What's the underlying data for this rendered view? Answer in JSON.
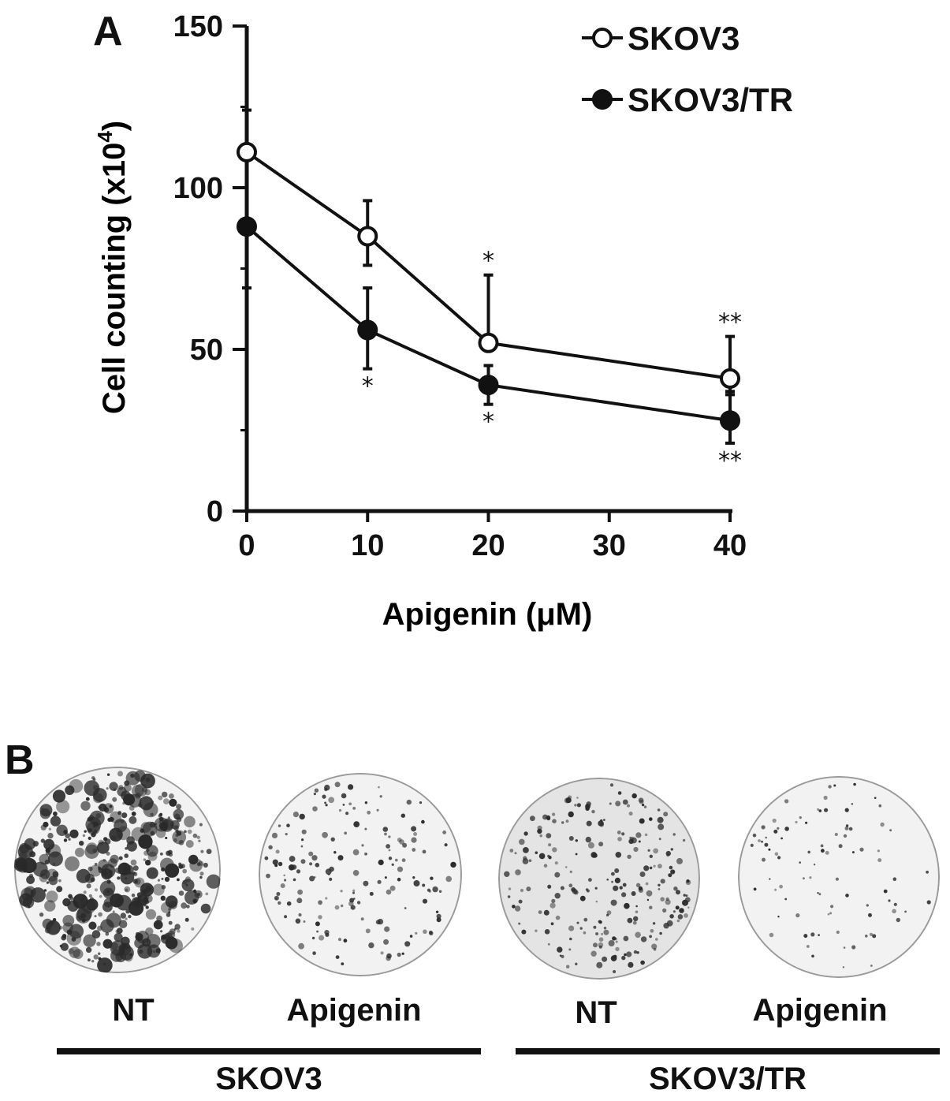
{
  "panels": {
    "a_letter": "A",
    "b_letter": "B"
  },
  "chart_data": {
    "type": "line",
    "xlabel": "Apigenin (μM)",
    "ylabel": "Cell counting (x10⁴)",
    "ylabel_base": "Cell counting (x10",
    "ylabel_sup": "4",
    "ylabel_close": ")",
    "x_ticks": [
      0,
      10,
      20,
      30,
      40
    ],
    "y_ticks": [
      0,
      50,
      100,
      150
    ],
    "xlim": [
      0,
      40
    ],
    "ylim": [
      0,
      150
    ],
    "grid": false,
    "legend_position": "top-right",
    "series": [
      {
        "name": "SKOV3",
        "marker": "open-circle",
        "x": [
          0,
          10,
          20,
          40
        ],
        "y": [
          111,
          85,
          52,
          41
        ],
        "err_up": [
          13,
          11,
          21,
          13
        ],
        "err_down": [
          0,
          9,
          0,
          5
        ],
        "annotations": [
          "",
          "",
          "*",
          "**"
        ],
        "annotation_side": "above"
      },
      {
        "name": "SKOV3/TR",
        "marker": "filled-circle",
        "x": [
          0,
          10,
          20,
          40
        ],
        "y": [
          88,
          56,
          39,
          28
        ],
        "err_up": [
          0,
          13,
          6,
          9
        ],
        "err_down": [
          19,
          12,
          6,
          7
        ],
        "annotations": [
          "",
          "*",
          "*",
          "**"
        ],
        "annotation_side": "below"
      }
    ]
  },
  "colony_assay": {
    "dishes": [
      {
        "label": "NT",
        "group": "SKOV3",
        "density": "high"
      },
      {
        "label": "Apigenin",
        "group": "SKOV3",
        "density": "medium"
      },
      {
        "label": "NT",
        "group": "SKOV3/TR",
        "density": "medium-high"
      },
      {
        "label": "Apigenin",
        "group": "SKOV3/TR",
        "density": "low"
      }
    ],
    "groups": [
      "SKOV3",
      "SKOV3/TR"
    ]
  },
  "colors": {
    "ink": "#111111",
    "dish_bg": "#f2f2f2",
    "colony": "#2a2a2a"
  }
}
